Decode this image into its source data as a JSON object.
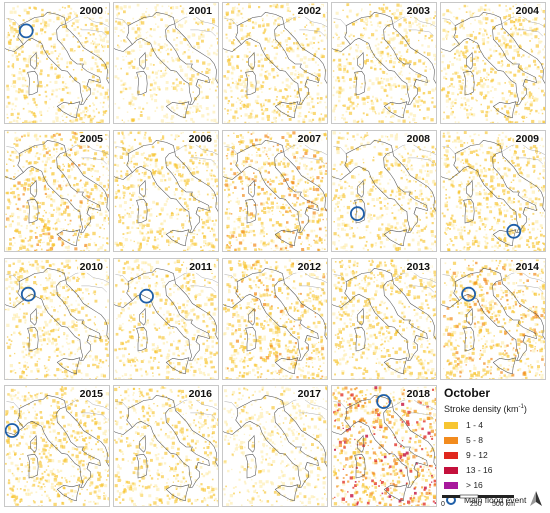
{
  "years": [
    "2000",
    "2001",
    "2002",
    "2003",
    "2004",
    "2005",
    "2006",
    "2007",
    "2008",
    "2009",
    "2010",
    "2011",
    "2012",
    "2013",
    "2014",
    "2015",
    "2016",
    "2017",
    "2018"
  ],
  "flood_events": {
    "2000": {
      "lon": 8.0,
      "lat": 45.1
    },
    "2008": {
      "lon": 8.6,
      "lat": 39.8
    },
    "2009": {
      "lon": 15.3,
      "lat": 38.1
    },
    "2010": {
      "lon": 8.3,
      "lat": 44.4
    },
    "2011": {
      "lon": 9.6,
      "lat": 44.2
    },
    "2014": {
      "lon": 8.9,
      "lat": 44.4
    },
    "2015": {
      "lon": 6.0,
      "lat": 43.5
    },
    "2018": {
      "lon": 12.3,
      "lat": 46.3
    }
  },
  "activity_level": {
    "2000": 0.45,
    "2001": 0.3,
    "2002": 0.45,
    "2003": 0.4,
    "2004": 0.5,
    "2005": 0.6,
    "2006": 0.5,
    "2007": 0.65,
    "2008": 0.4,
    "2009": 0.55,
    "2010": 0.45,
    "2011": 0.4,
    "2012": 0.6,
    "2013": 0.55,
    "2014": 0.65,
    "2015": 0.55,
    "2016": 0.45,
    "2017": 0.3,
    "2018": 0.85
  },
  "legend": {
    "title": "October",
    "subtitle_main": "Stroke density (km",
    "subtitle_sup": "-1",
    "subtitle_end": ")",
    "classes": [
      {
        "label": "1 - 4",
        "color": "#f7c531"
      },
      {
        "label": "5 - 8",
        "color": "#f28b1e"
      },
      {
        "label": "9 - 12",
        "color": "#e0281e"
      },
      {
        "label": "13 - 16",
        "color": "#c4103c"
      },
      {
        "label": "> 16",
        "color": "#a8189c"
      }
    ],
    "flood_label": "Main flood event",
    "flood_color": "#1f5fa8"
  },
  "scale": {
    "t0": "0",
    "t1": "250",
    "t2": "500 km"
  }
}
